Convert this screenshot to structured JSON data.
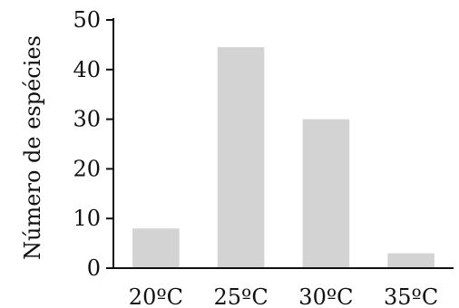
{
  "chart_data": {
    "type": "bar",
    "categories": [
      "20ºC",
      "25ºC",
      "30ºC",
      "35ºC"
    ],
    "values": [
      8,
      44.5,
      30,
      3
    ],
    "title": "",
    "xlabel": "",
    "ylabel": "Número de espécies",
    "ylim": [
      0,
      50
    ],
    "yticks": [
      0,
      10,
      20,
      30,
      40,
      50
    ],
    "grid": false,
    "colors": {
      "bar": "#d3d3d3",
      "axis": "#111111"
    }
  }
}
